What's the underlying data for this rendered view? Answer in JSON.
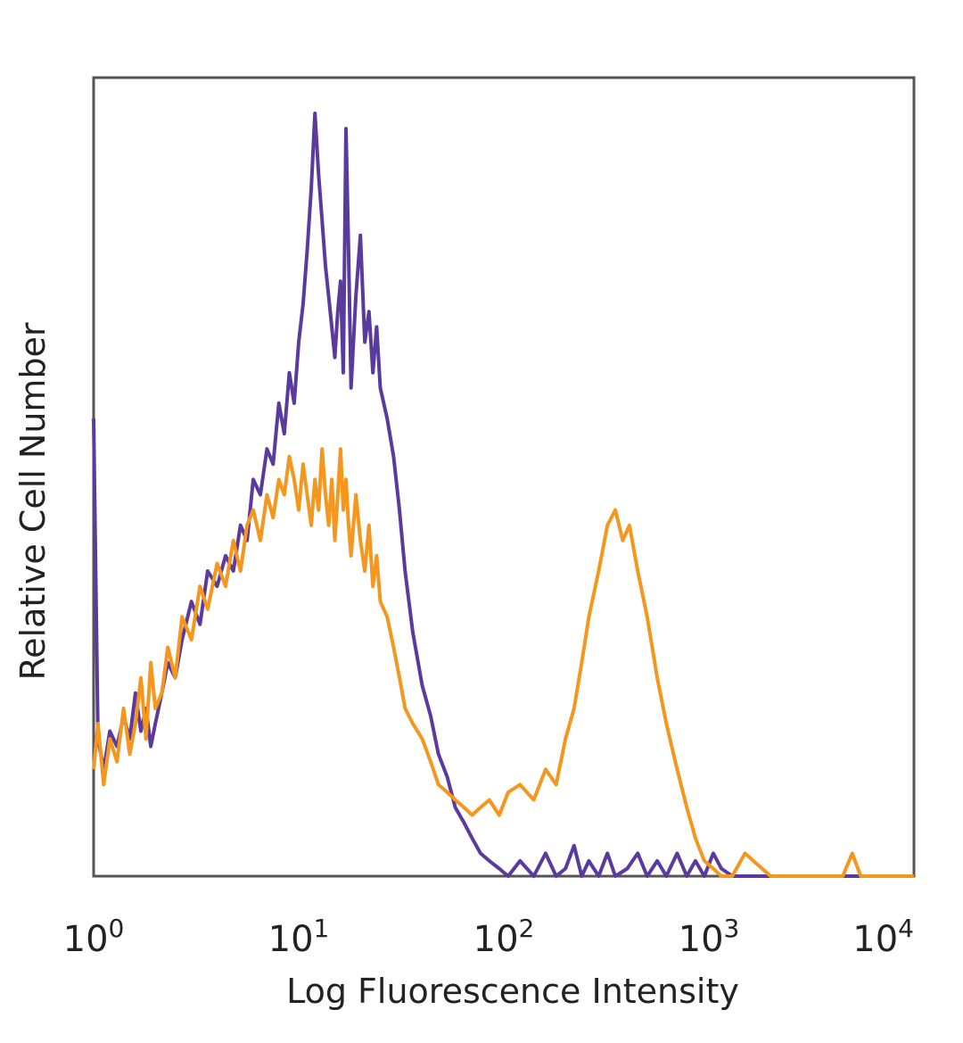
{
  "chart_data": {
    "type": "line",
    "title": "",
    "xlabel": "Log Fluorescence Intensity",
    "ylabel": "Relative Cell Number",
    "x_scale": "log",
    "xlim": [
      1,
      10000
    ],
    "ylim": [
      0,
      100
    ],
    "x_ticks": [
      {
        "base": "10",
        "exp": "0",
        "value": 1
      },
      {
        "base": "10",
        "exp": "1",
        "value": 10
      },
      {
        "base": "10",
        "exp": "2",
        "value": 100
      },
      {
        "base": "10",
        "exp": "3",
        "value": 1000
      },
      {
        "base": "10",
        "exp": "4",
        "value": 10000
      }
    ],
    "grid": false,
    "legend": "none",
    "series": [
      {
        "color": "#5b3a9e",
        "x": [
          1.0,
          1.05,
          1.12,
          1.2,
          1.3,
          1.4,
          1.5,
          1.6,
          1.7,
          1.8,
          1.9,
          2.0,
          2.15,
          2.3,
          2.5,
          2.7,
          3.0,
          3.3,
          3.6,
          4.0,
          4.4,
          4.8,
          5.2,
          5.6,
          6.0,
          6.5,
          7.0,
          7.5,
          8.0,
          8.5,
          9.0,
          9.5,
          10.0,
          10.5,
          11.0,
          11.5,
          12.0,
          12.5,
          13.0,
          13.5,
          14.0,
          14.5,
          15.0,
          15.5,
          16.0,
          16.5,
          17.0,
          17.5,
          18.0,
          19.0,
          20.0,
          21.0,
          22.0,
          23.0,
          24.0,
          25.0,
          27.0,
          29.0,
          31.0,
          33.0,
          36.0,
          40.0,
          44.0,
          48.0,
          53.0,
          58.0,
          64.0,
          70.0,
          77.0,
          85.0,
          95.0,
          105.0,
          120.0,
          140.0,
          160.0,
          180.0,
          200.0,
          220.0,
          240.0,
          260.0,
          290.0,
          320.0,
          350.0,
          400.0,
          450.0,
          500.0,
          560.0,
          620.0,
          700.0,
          780.0,
          860.0,
          950.0,
          1050.0,
          1150.0,
          1300.0,
          2000.0,
          5000.0,
          10000.0
        ],
        "y": [
          60,
          18,
          14,
          19,
          17,
          21,
          18,
          24,
          19,
          22,
          17,
          20,
          24,
          28,
          26,
          31,
          36,
          33,
          40,
          38,
          42,
          40,
          46,
          44,
          52,
          50,
          56,
          54,
          62,
          58,
          66,
          62,
          70,
          75,
          82,
          90,
          100,
          92,
          86,
          80,
          76,
          72,
          68,
          74,
          78,
          66,
          98,
          82,
          64,
          76,
          84,
          70,
          74,
          66,
          72,
          64,
          60,
          55,
          48,
          40,
          32,
          25,
          21,
          16,
          13,
          9,
          7,
          5,
          3,
          2,
          1,
          0,
          2,
          0,
          3,
          0,
          1,
          4,
          0,
          2,
          0,
          3,
          0,
          1,
          3,
          0,
          2,
          0,
          3,
          0,
          2,
          0,
          3,
          1,
          0,
          0,
          0,
          0
        ]
      },
      {
        "color": "#f5961e",
        "x": [
          1.0,
          1.05,
          1.12,
          1.2,
          1.3,
          1.4,
          1.5,
          1.6,
          1.7,
          1.8,
          1.9,
          2.0,
          2.15,
          2.3,
          2.5,
          2.7,
          3.0,
          3.3,
          3.6,
          4.0,
          4.4,
          4.8,
          5.2,
          5.6,
          6.0,
          6.5,
          7.0,
          7.5,
          8.0,
          8.5,
          9.0,
          9.5,
          10.0,
          10.5,
          11.0,
          11.5,
          12.0,
          12.5,
          13.0,
          13.5,
          14.0,
          14.5,
          15.0,
          15.5,
          16.0,
          16.5,
          17.0,
          17.5,
          18.0,
          19.0,
          20.0,
          21.0,
          22.0,
          23.0,
          24.0,
          25.0,
          27.0,
          29.0,
          31.0,
          33.0,
          36.0,
          40.0,
          44.0,
          48.0,
          53.0,
          58.0,
          64.0,
          70.0,
          77.0,
          85.0,
          95.0,
          105.0,
          120.0,
          140.0,
          160.0,
          180.0,
          200.0,
          220.0,
          240.0,
          260.0,
          290.0,
          320.0,
          350.0,
          380.0,
          410.0,
          450.0,
          500.0,
          560.0,
          620.0,
          700.0,
          780.0,
          860.0,
          950.0,
          1050.0,
          1150.0,
          1300.0,
          1500.0,
          2000.0,
          3000.0,
          4500.0,
          5000.0,
          5500.0,
          10000.0
        ],
        "y": [
          14,
          20,
          12,
          18,
          15,
          22,
          16,
          20,
          26,
          18,
          28,
          22,
          24,
          30,
          26,
          34,
          31,
          38,
          35,
          41,
          38,
          44,
          40,
          46,
          48,
          44,
          50,
          47,
          52,
          50,
          55,
          52,
          48,
          54,
          50,
          46,
          52,
          48,
          56,
          50,
          46,
          52,
          44,
          50,
          56,
          48,
          52,
          46,
          42,
          50,
          44,
          40,
          46,
          38,
          42,
          36,
          34,
          30,
          26,
          22,
          20,
          18,
          15,
          12,
          11,
          10,
          9,
          8,
          9,
          10,
          8,
          11,
          12,
          10,
          14,
          12,
          18,
          22,
          28,
          34,
          40,
          46,
          48,
          44,
          46,
          40,
          34,
          26,
          20,
          14,
          9,
          5,
          2,
          1,
          0,
          0,
          3,
          0,
          0,
          0,
          3,
          0,
          0
        ]
      }
    ]
  }
}
